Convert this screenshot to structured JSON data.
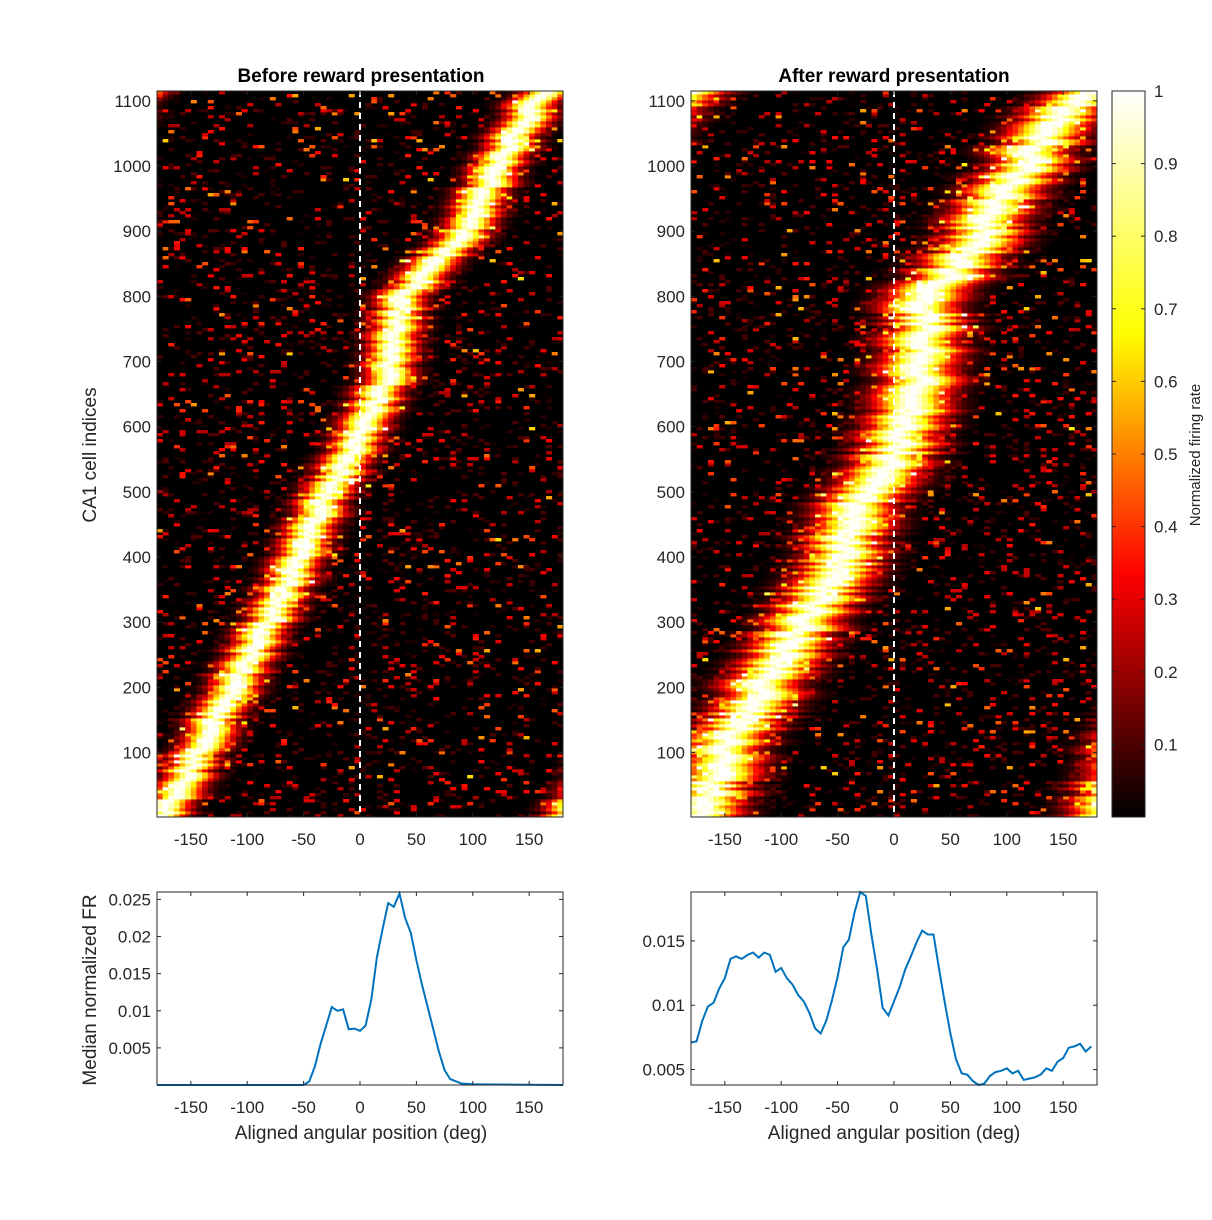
{
  "chart_data": [
    {
      "type": "heatmap",
      "title": "Before reward presentation",
      "xlabel": "",
      "ylabel": "CA1 cell indices",
      "xlim": [
        -180,
        180
      ],
      "ylim": [
        1,
        1115
      ],
      "xticks": [
        -150,
        -100,
        -50,
        0,
        50,
        100,
        150
      ],
      "yticks": [
        100,
        200,
        300,
        400,
        500,
        600,
        700,
        800,
        900,
        1000,
        1100
      ],
      "reference_line_x": 0,
      "peak_ridge": {
        "cell_index": [
          1,
          100,
          200,
          300,
          400,
          450,
          500,
          550,
          600,
          650,
          700,
          750,
          800,
          850,
          900,
          950,
          1000,
          1050,
          1100,
          1115
        ],
        "peak_deg": [
          -172,
          -145,
          -112,
          -82,
          -52,
          -42,
          -30,
          -10,
          2,
          18,
          28,
          32,
          38,
          68,
          92,
          108,
          122,
          138,
          158,
          172
        ]
      }
    },
    {
      "type": "heatmap",
      "title": "After reward presentation",
      "xlabel": "",
      "ylabel": "",
      "xlim": [
        -180,
        180
      ],
      "ylim": [
        1,
        1115
      ],
      "xticks": [
        -150,
        -100,
        -50,
        0,
        50,
        100,
        150
      ],
      "yticks": [
        100,
        200,
        300,
        400,
        500,
        600,
        700,
        800,
        900,
        1000,
        1100
      ],
      "reference_line_x": 0,
      "peak_ridge": {
        "cell_index": [
          1,
          100,
          200,
          300,
          400,
          450,
          500,
          550,
          600,
          650,
          700,
          750,
          800,
          850,
          900,
          950,
          1000,
          1050,
          1100,
          1115
        ],
        "peak_deg": [
          -175,
          -150,
          -115,
          -80,
          -45,
          -40,
          -25,
          0,
          10,
          18,
          25,
          28,
          30,
          60,
          80,
          95,
          115,
          135,
          160,
          175
        ]
      }
    },
    {
      "type": "line",
      "title": "",
      "xlabel": "Aligned angular position (deg)",
      "ylabel": "Median normalized FR",
      "xlim": [
        -180,
        180
      ],
      "ylim": [
        0,
        0.026
      ],
      "xticks": [
        -150,
        -100,
        -50,
        0,
        50,
        100,
        150
      ],
      "yticks": [
        0.005,
        0.01,
        0.015,
        0.02,
        0.025
      ],
      "ytick_labels": [
        "0.005",
        "0.01",
        "0.015",
        "0.02",
        "0.025"
      ],
      "x": [
        -180,
        -60,
        -50,
        -45,
        -40,
        -35,
        -30,
        -25,
        -20,
        -15,
        -10,
        -5,
        0,
        5,
        10,
        15,
        20,
        25,
        30,
        35,
        40,
        45,
        50,
        55,
        60,
        65,
        70,
        75,
        80,
        90,
        100,
        180
      ],
      "y": [
        0,
        0,
        0,
        0.0005,
        0.0025,
        0.0055,
        0.008,
        0.0105,
        0.01,
        0.0102,
        0.0075,
        0.0076,
        0.0073,
        0.008,
        0.0115,
        0.0172,
        0.021,
        0.0245,
        0.024,
        0.0258,
        0.0225,
        0.0205,
        0.0168,
        0.0135,
        0.0105,
        0.0075,
        0.0045,
        0.002,
        0.0008,
        0.0002,
        0.0001,
        0
      ]
    },
    {
      "type": "line",
      "title": "",
      "xlabel": "Aligned angular position (deg)",
      "ylabel": "",
      "xlim": [
        -180,
        180
      ],
      "ylim": [
        0.0038,
        0.0188
      ],
      "xticks": [
        -150,
        -100,
        -50,
        0,
        50,
        100,
        150
      ],
      "yticks": [
        0.005,
        0.01,
        0.015
      ],
      "ytick_labels": [
        "0.005",
        "0.01",
        "0.015"
      ],
      "x": [
        -180,
        -175,
        -170,
        -165,
        -160,
        -155,
        -150,
        -145,
        -140,
        -135,
        -130,
        -125,
        -120,
        -115,
        -110,
        -105,
        -100,
        -95,
        -90,
        -85,
        -80,
        -75,
        -70,
        -65,
        -60,
        -55,
        -50,
        -45,
        -40,
        -35,
        -30,
        -25,
        -20,
        -15,
        -10,
        -5,
        0,
        5,
        10,
        15,
        20,
        25,
        30,
        35,
        40,
        45,
        50,
        55,
        60,
        65,
        70,
        75,
        80,
        85,
        90,
        95,
        100,
        105,
        110,
        115,
        120,
        125,
        130,
        135,
        140,
        145,
        150,
        155,
        160,
        165,
        170,
        175
      ],
      "y": [
        0.0071,
        0.0072,
        0.0088,
        0.0099,
        0.0102,
        0.0113,
        0.0121,
        0.0136,
        0.0138,
        0.0136,
        0.0139,
        0.0141,
        0.0137,
        0.0141,
        0.0139,
        0.0126,
        0.0129,
        0.0121,
        0.0116,
        0.0108,
        0.0103,
        0.0094,
        0.0082,
        0.0078,
        0.0088,
        0.0104,
        0.0122,
        0.0145,
        0.0151,
        0.0172,
        0.0189,
        0.0185,
        0.0155,
        0.0128,
        0.0098,
        0.0092,
        0.0103,
        0.0114,
        0.0128,
        0.0138,
        0.0149,
        0.0158,
        0.0155,
        0.0155,
        0.0128,
        0.0102,
        0.0078,
        0.0058,
        0.0047,
        0.0046,
        0.0041,
        0.0037,
        0.0039,
        0.0045,
        0.0048,
        0.0049,
        0.0051,
        0.0047,
        0.0049,
        0.0042,
        0.0043,
        0.0044,
        0.0046,
        0.0051,
        0.0049,
        0.0056,
        0.0059,
        0.0067,
        0.0068,
        0.007,
        0.0064,
        0.0068
      ]
    }
  ],
  "colorbar": {
    "label": "Normalized firing rate",
    "range": [
      0,
      1
    ],
    "ticks": [
      0.1,
      0.2,
      0.3,
      0.4,
      0.5,
      0.6,
      0.7,
      0.8,
      0.9,
      1
    ],
    "tick_labels": [
      "0.1",
      "0.2",
      "0.3",
      "0.4",
      "0.5",
      "0.6",
      "0.7",
      "0.8",
      "0.9",
      "1"
    ],
    "colormap": "hot",
    "colors": [
      "#000000",
      "#800000",
      "#ff0000",
      "#ff8000",
      "#ffff00",
      "#ffffff"
    ]
  }
}
